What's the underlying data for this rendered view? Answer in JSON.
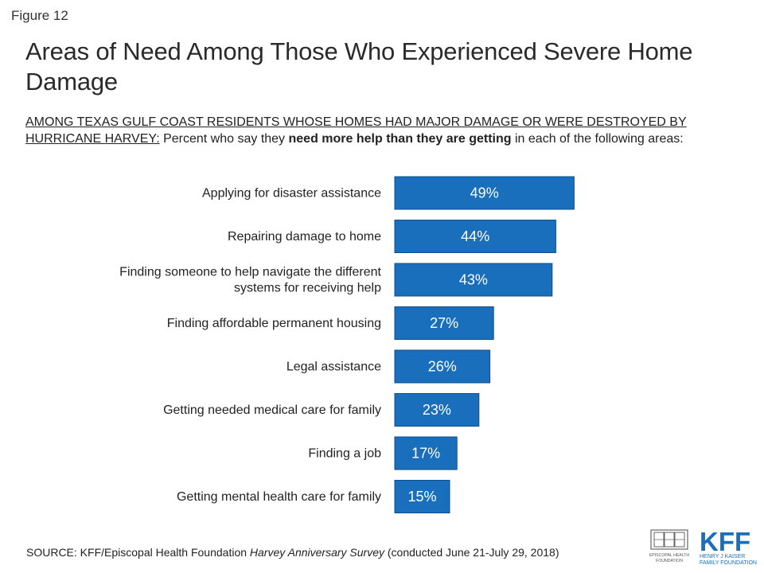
{
  "figure_label": "Figure 12",
  "title": "Areas of Need Among Those Who Experienced Severe Home Damage",
  "subtitle": {
    "lead": "AMONG TEXAS GULF COAST RESIDENTS WHOSE HOMES HAD MAJOR DAMAGE OR WERE DESTROYED BY HURRICANE HARVEY:",
    "part1": " Percent who say they ",
    "emphasis": "need more help than they are getting",
    "part2": " in each of the following areas:"
  },
  "source": {
    "prefix": "SOURCE: KFF/Episcopal Health Foundation ",
    "survey": "Harvey Anniversary Survey",
    "suffix": " (conducted June 21-July 29, 2018)"
  },
  "logos": {
    "ehf": {
      "line1": "EPISCOPAL HEALTH",
      "line2": "FOUNDATION"
    },
    "kff": {
      "mark": "KFF",
      "line1": "HENRY J KAISER",
      "line2": "FAMILY FOUNDATION"
    }
  },
  "colors": {
    "bar": "#1a6fbd",
    "bar_border": "#0e4e8a",
    "kff": "#1a6fbd"
  },
  "chart_data": {
    "type": "bar",
    "orientation": "horizontal",
    "categories": [
      [
        "Applying for disaster assistance"
      ],
      [
        "Repairing damage to home"
      ],
      [
        "Finding someone to help navigate the different",
        "systems for receiving help"
      ],
      [
        "Finding affordable permanent housing"
      ],
      [
        "Legal assistance"
      ],
      [
        "Getting needed medical care for family"
      ],
      [
        "Finding a job"
      ],
      [
        "Getting mental health care for family"
      ]
    ],
    "values": [
      49,
      44,
      43,
      27,
      26,
      23,
      17,
      15
    ],
    "value_labels": [
      "49%",
      "44%",
      "43%",
      "27%",
      "26%",
      "23%",
      "17%",
      "15%"
    ],
    "unit": "%",
    "grid": false,
    "legend": "none"
  }
}
